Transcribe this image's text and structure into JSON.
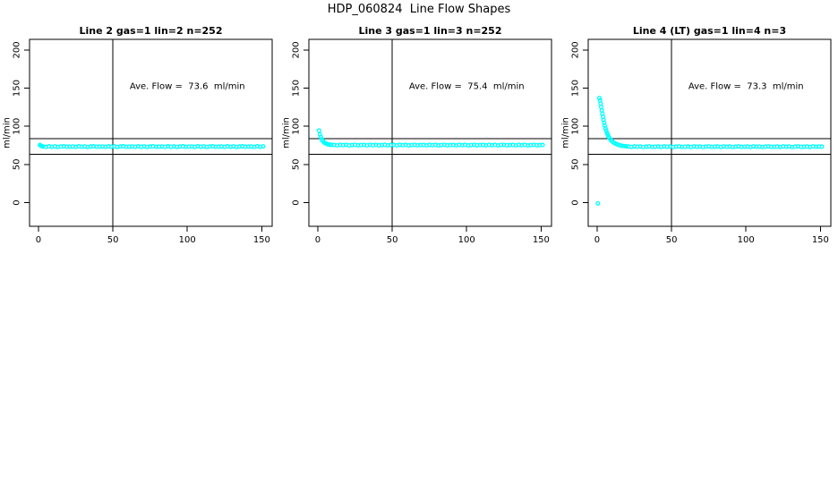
{
  "figure": {
    "title": "HDP_060824  Line Flow Shapes",
    "background_color": "#ffffff",
    "point_color": "#00ffff",
    "axis_color": "#000000"
  },
  "chart_data": [
    {
      "type": "scatter",
      "title": "Line 2 gas=1 lin=2 n=252",
      "annotation": "Ave. Flow =  73.6  ml/min",
      "ave_flow_ml_min": 73.6,
      "n": 252,
      "xlabel": "",
      "ylabel": "ml/min",
      "xlim": [
        -6,
        157
      ],
      "ylim": [
        -31,
        214
      ],
      "xticks": [
        0,
        50,
        100,
        150
      ],
      "yticks": [
        0,
        50,
        100,
        150,
        200
      ],
      "ref_hlines": [
        84,
        63.5
      ],
      "ref_vlines": [
        50
      ],
      "grid": false,
      "legend": "none",
      "annotation_pos": {
        "x": 100,
        "y": 152
      },
      "points": [
        [
          1,
          75.4
        ],
        [
          1.7,
          74.5
        ],
        [
          2.3,
          74.0
        ],
        [
          3,
          73.6
        ],
        [
          5,
          73.1
        ],
        [
          7,
          73.8
        ],
        [
          9,
          73.3
        ],
        [
          11,
          73.7
        ],
        [
          13,
          73.0
        ],
        [
          15,
          73.5
        ],
        [
          17,
          73.8
        ],
        [
          19,
          73.2
        ],
        [
          21,
          73.4
        ],
        [
          23,
          73.6
        ],
        [
          25,
          73.1
        ],
        [
          27,
          73.8
        ],
        [
          29,
          73.3
        ],
        [
          31,
          73.7
        ],
        [
          33,
          73.0
        ],
        [
          35,
          73.5
        ],
        [
          37,
          73.8
        ],
        [
          39,
          73.2
        ],
        [
          41,
          73.4
        ],
        [
          43,
          73.6
        ],
        [
          45,
          73.1
        ],
        [
          47,
          73.8
        ],
        [
          49,
          73.3
        ],
        [
          51,
          73.7
        ],
        [
          53,
          73.0
        ],
        [
          55,
          73.5
        ],
        [
          57,
          73.8
        ],
        [
          59,
          73.2
        ],
        [
          61,
          73.4
        ],
        [
          63,
          73.6
        ],
        [
          65,
          73.1
        ],
        [
          67,
          73.8
        ],
        [
          69,
          73.3
        ],
        [
          71,
          73.7
        ],
        [
          73,
          73.0
        ],
        [
          75,
          73.5
        ],
        [
          77,
          73.8
        ],
        [
          79,
          73.2
        ],
        [
          81,
          73.4
        ],
        [
          83,
          73.6
        ],
        [
          85,
          73.1
        ],
        [
          87,
          73.8
        ],
        [
          89,
          73.3
        ],
        [
          91,
          73.7
        ],
        [
          93,
          73.0
        ],
        [
          95,
          73.5
        ],
        [
          97,
          73.8
        ],
        [
          99,
          73.2
        ],
        [
          101,
          73.4
        ],
        [
          103,
          73.6
        ],
        [
          105,
          73.1
        ],
        [
          107,
          73.8
        ],
        [
          109,
          73.3
        ],
        [
          111,
          73.7
        ],
        [
          113,
          73.0
        ],
        [
          115,
          73.5
        ],
        [
          117,
          73.8
        ],
        [
          119,
          73.2
        ],
        [
          121,
          73.4
        ],
        [
          123,
          73.6
        ],
        [
          125,
          73.1
        ],
        [
          127,
          73.8
        ],
        [
          129,
          73.3
        ],
        [
          131,
          73.7
        ],
        [
          133,
          73.0
        ],
        [
          135,
          73.5
        ],
        [
          137,
          73.8
        ],
        [
          139,
          73.2
        ],
        [
          141,
          73.4
        ],
        [
          143,
          73.6
        ],
        [
          145,
          73.1
        ],
        [
          147,
          73.8
        ],
        [
          149,
          73.3
        ],
        [
          151,
          73.7
        ]
      ]
    },
    {
      "type": "scatter",
      "title": "Line 3 gas=1 lin=3 n=252",
      "annotation": "Ave. Flow =  75.4  ml/min",
      "ave_flow_ml_min": 75.4,
      "n": 252,
      "xlabel": "",
      "ylabel": "ml/min",
      "xlim": [
        -6,
        157
      ],
      "ylim": [
        -31,
        214
      ],
      "xticks": [
        0,
        50,
        100,
        150
      ],
      "yticks": [
        0,
        50,
        100,
        150,
        200
      ],
      "ref_hlines": [
        84,
        63.5
      ],
      "ref_vlines": [
        50
      ],
      "grid": false,
      "legend": "none",
      "annotation_pos": {
        "x": 100,
        "y": 152
      },
      "points": [
        [
          0.8,
          94.5
        ],
        [
          1.4,
          89.5
        ],
        [
          2.0,
          86.0
        ],
        [
          2.6,
          83.2
        ],
        [
          3.2,
          81.2
        ],
        [
          3.9,
          79.6
        ],
        [
          4.6,
          78.4
        ],
        [
          5.4,
          77.5
        ],
        [
          6.2,
          76.8
        ],
        [
          7.0,
          76.3
        ],
        [
          8.0,
          75.9
        ],
        [
          9.0,
          75.7
        ],
        [
          11,
          75.6
        ],
        [
          13,
          75.1
        ],
        [
          15,
          75.8
        ],
        [
          17,
          75.3
        ],
        [
          19,
          75.7
        ],
        [
          21,
          75.0
        ],
        [
          23,
          75.5
        ],
        [
          25,
          75.8
        ],
        [
          27,
          75.2
        ],
        [
          29,
          75.4
        ],
        [
          31,
          75.6
        ],
        [
          33,
          75.1
        ],
        [
          35,
          75.8
        ],
        [
          37,
          75.3
        ],
        [
          39,
          75.7
        ],
        [
          41,
          75.0
        ],
        [
          43,
          75.5
        ],
        [
          45,
          75.8
        ],
        [
          47,
          75.2
        ],
        [
          49,
          75.4
        ],
        [
          51,
          75.6
        ],
        [
          53,
          75.1
        ],
        [
          55,
          75.8
        ],
        [
          57,
          75.3
        ],
        [
          59,
          75.7
        ],
        [
          61,
          75.0
        ],
        [
          63,
          75.5
        ],
        [
          65,
          75.8
        ],
        [
          67,
          75.2
        ],
        [
          69,
          75.4
        ],
        [
          71,
          75.6
        ],
        [
          73,
          75.1
        ],
        [
          75,
          75.8
        ],
        [
          77,
          75.3
        ],
        [
          79,
          75.7
        ],
        [
          81,
          75.0
        ],
        [
          83,
          75.5
        ],
        [
          85,
          75.8
        ],
        [
          87,
          75.2
        ],
        [
          89,
          75.4
        ],
        [
          91,
          75.6
        ],
        [
          93,
          75.1
        ],
        [
          95,
          75.8
        ],
        [
          97,
          75.3
        ],
        [
          99,
          75.7
        ],
        [
          101,
          75.0
        ],
        [
          103,
          75.5
        ],
        [
          105,
          75.8
        ],
        [
          107,
          75.2
        ],
        [
          109,
          75.4
        ],
        [
          111,
          75.6
        ],
        [
          113,
          75.1
        ],
        [
          115,
          75.8
        ],
        [
          117,
          75.3
        ],
        [
          119,
          75.7
        ],
        [
          121,
          75.0
        ],
        [
          123,
          75.5
        ],
        [
          125,
          75.8
        ],
        [
          127,
          75.2
        ],
        [
          129,
          75.4
        ],
        [
          131,
          75.6
        ],
        [
          133,
          75.1
        ],
        [
          135,
          75.8
        ],
        [
          137,
          75.3
        ],
        [
          139,
          75.7
        ],
        [
          141,
          75.0
        ],
        [
          143,
          75.5
        ],
        [
          145,
          75.8
        ],
        [
          147,
          75.2
        ],
        [
          149,
          75.4
        ],
        [
          151,
          75.6
        ]
      ]
    },
    {
      "type": "scatter",
      "title": "Line 4 (LT) gas=1 lin=4 n=3",
      "annotation": "Ave. Flow =  73.3  ml/min",
      "ave_flow_ml_min": 73.3,
      "n": 3,
      "xlabel": "",
      "ylabel": "ml/min",
      "xlim": [
        -6,
        157
      ],
      "ylim": [
        -31,
        214
      ],
      "xticks": [
        0,
        50,
        100,
        150
      ],
      "yticks": [
        0,
        50,
        100,
        150,
        200
      ],
      "ref_hlines": [
        84,
        63.5
      ],
      "ref_vlines": [
        50
      ],
      "grid": false,
      "legend": "none",
      "annotation_pos": {
        "x": 100,
        "y": 152
      },
      "points": [
        [
          0.5,
          -1.0
        ],
        [
          1.5,
          137.0
        ],
        [
          1.9,
          134.0
        ],
        [
          2.3,
          130.0
        ],
        [
          2.7,
          125.5
        ],
        [
          3.1,
          121.0
        ],
        [
          3.5,
          116.5
        ],
        [
          3.9,
          112.5
        ],
        [
          4.3,
          108.5
        ],
        [
          4.7,
          104.5
        ],
        [
          5.1,
          101.0
        ],
        [
          5.6,
          97.5
        ],
        [
          6.1,
          94.5
        ],
        [
          6.6,
          91.5
        ],
        [
          7.1,
          89.0
        ],
        [
          7.7,
          86.5
        ],
        [
          8.3,
          84.5
        ],
        [
          9.0,
          82.5
        ],
        [
          9.8,
          81.0
        ],
        [
          10.6,
          79.5
        ],
        [
          11.5,
          78.3
        ],
        [
          12.5,
          77.2
        ],
        [
          13.5,
          76.3
        ],
        [
          14.5,
          75.6
        ],
        [
          15.5,
          75.0
        ],
        [
          16.5,
          74.6
        ],
        [
          18.0,
          74.2
        ],
        [
          19.5,
          73.9
        ],
        [
          21,
          73.5
        ],
        [
          23,
          73.0
        ],
        [
          25,
          73.7
        ],
        [
          27,
          73.2
        ],
        [
          29,
          73.6
        ],
        [
          31,
          72.9
        ],
        [
          33,
          73.4
        ],
        [
          35,
          73.7
        ],
        [
          37,
          73.1
        ],
        [
          39,
          73.3
        ],
        [
          41,
          73.5
        ],
        [
          43,
          73.0
        ],
        [
          45,
          73.7
        ],
        [
          47,
          73.2
        ],
        [
          49,
          73.6
        ],
        [
          51,
          72.9
        ],
        [
          53,
          73.4
        ],
        [
          55,
          73.7
        ],
        [
          57,
          73.1
        ],
        [
          59,
          73.3
        ],
        [
          61,
          73.5
        ],
        [
          63,
          73.0
        ],
        [
          65,
          73.7
        ],
        [
          67,
          73.2
        ],
        [
          69,
          73.6
        ],
        [
          71,
          72.9
        ],
        [
          73,
          73.4
        ],
        [
          75,
          73.7
        ],
        [
          77,
          73.1
        ],
        [
          79,
          73.3
        ],
        [
          81,
          73.5
        ],
        [
          83,
          73.0
        ],
        [
          85,
          73.7
        ],
        [
          87,
          73.2
        ],
        [
          89,
          73.6
        ],
        [
          91,
          72.9
        ],
        [
          93,
          73.4
        ],
        [
          95,
          73.7
        ],
        [
          97,
          73.1
        ],
        [
          99,
          73.3
        ],
        [
          101,
          73.5
        ],
        [
          103,
          73.0
        ],
        [
          105,
          73.7
        ],
        [
          107,
          73.2
        ],
        [
          109,
          73.6
        ],
        [
          111,
          72.9
        ],
        [
          113,
          73.4
        ],
        [
          115,
          73.7
        ],
        [
          117,
          73.1
        ],
        [
          119,
          73.3
        ],
        [
          121,
          73.5
        ],
        [
          123,
          73.0
        ],
        [
          125,
          73.7
        ],
        [
          127,
          73.2
        ],
        [
          129,
          73.6
        ],
        [
          131,
          72.9
        ],
        [
          133,
          73.4
        ],
        [
          135,
          73.7
        ],
        [
          137,
          73.1
        ],
        [
          139,
          73.3
        ],
        [
          141,
          73.5
        ],
        [
          143,
          73.0
        ],
        [
          145,
          73.7
        ],
        [
          147,
          73.2
        ],
        [
          149,
          73.6
        ],
        [
          151,
          73.4
        ]
      ]
    }
  ]
}
